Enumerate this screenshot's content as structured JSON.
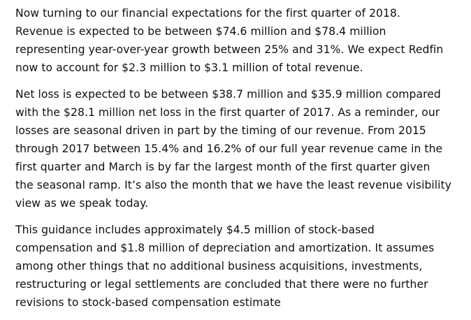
{
  "paragraphs": [
    {
      "lines": [
        "Now turning to our financial expectations for the first quarter of 2018.",
        "Revenue is expected to be between $74.6 million and $78.4 million",
        "representing year-over-year growth between 25% and 31%. We expect Redfin",
        "now to account for $2.3 million to $3.1 million of total revenue."
      ]
    },
    {
      "lines": [
        "Net loss is expected to be between $38.7 million and $35.9 million compared",
        "with the $28.1 million net loss in the first quarter of 2017. As a reminder, our",
        "losses are seasonal driven in part by the timing of our revenue. From 2015",
        "through 2017 between 15.4% and 16.2% of our full year revenue came in the",
        "first quarter and March is by far the largest month of the first quarter given",
        "the seasonal ramp. It’s also the month that we have the least revenue visibility",
        "view as we speak today."
      ]
    },
    {
      "lines": [
        "This guidance includes approximately $4.5 million of stock-based",
        "compensation and $1.8 million of depreciation and amortization. It assumes",
        "among other things that no additional business acquisitions, investments,",
        "restructuring or legal settlements are concluded that there were no further",
        "revisions to stock-based compensation estimate"
      ]
    }
  ]
}
